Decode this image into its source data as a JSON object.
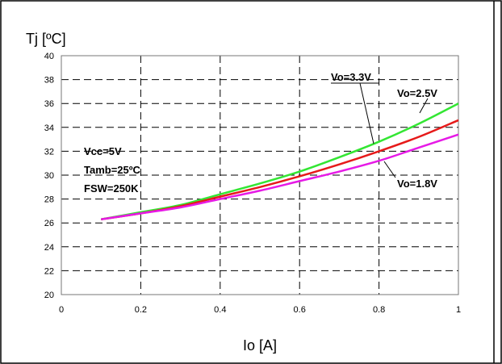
{
  "chart_data": {
    "type": "line",
    "ylabel": "Tj [ºC]",
    "xlabel": "Io [A]",
    "xlim": [
      0,
      1
    ],
    "ylim": [
      20,
      40
    ],
    "xticks": [
      0,
      0.2,
      0.4,
      0.6,
      0.8,
      1
    ],
    "xtick_labels": [
      "0",
      "0.2",
      "0.4",
      "0.6",
      "0.8",
      "1"
    ],
    "yticks": [
      20,
      22,
      24,
      26,
      28,
      30,
      32,
      34,
      36,
      38,
      40
    ],
    "ytick_labels": [
      "20",
      "22",
      "24",
      "26",
      "28",
      "30",
      "32",
      "34",
      "36",
      "38",
      "40"
    ],
    "grid": true,
    "grid_style": "dashed",
    "series": [
      {
        "name": "Vo=3.3V",
        "color": "#33e633",
        "x": [
          0.1,
          0.2,
          0.3,
          0.4,
          0.5,
          0.6,
          0.7,
          0.8,
          0.9,
          1.0
        ],
        "y": [
          26.3,
          26.9,
          27.5,
          28.4,
          29.3,
          30.3,
          31.5,
          32.8,
          34.3,
          36.0
        ]
      },
      {
        "name": "Vo=2.5V",
        "color": "#e61a1a",
        "x": [
          0.1,
          0.2,
          0.3,
          0.4,
          0.5,
          0.6,
          0.7,
          0.8,
          0.9,
          1.0
        ],
        "y": [
          26.3,
          26.8,
          27.4,
          28.2,
          29.0,
          29.9,
          30.9,
          32.0,
          33.2,
          34.6
        ]
      },
      {
        "name": "Vo=1.8V",
        "color": "#e61ae6",
        "x": [
          0.1,
          0.2,
          0.3,
          0.4,
          0.5,
          0.6,
          0.7,
          0.8,
          0.9,
          1.0
        ],
        "y": [
          26.3,
          26.8,
          27.3,
          28.0,
          28.7,
          29.5,
          30.3,
          31.2,
          32.3,
          33.4
        ]
      }
    ],
    "annotations": [
      "Vcc=5V",
      "Tamb=25ºC",
      "FSW=250K"
    ]
  }
}
